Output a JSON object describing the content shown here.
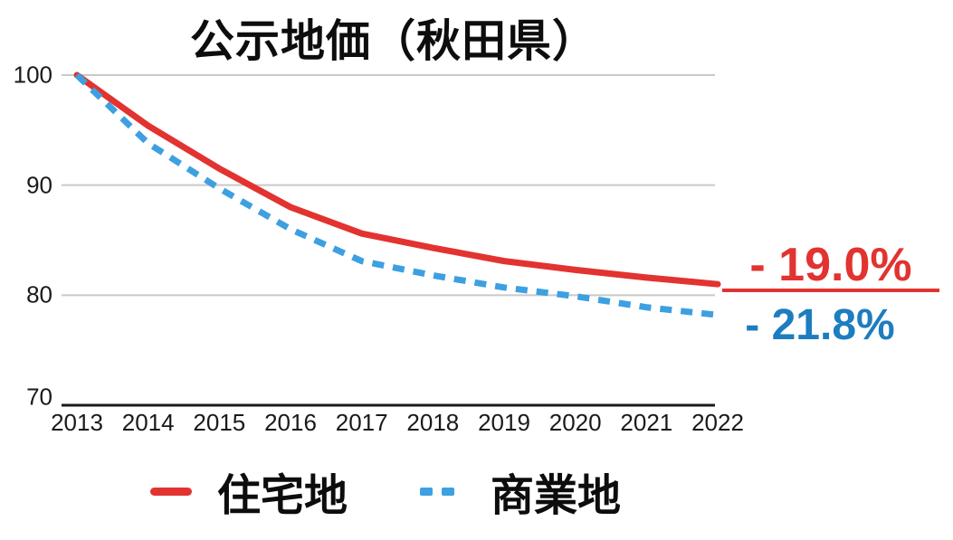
{
  "title": "公示地価（秋田県）",
  "colors": {
    "residential_line": "#e23330",
    "commercial_line": "#3da0e0",
    "commercial_text": "#1d7dbf",
    "gridline": "#c9c9c9",
    "axis": "#1a1a1a",
    "text": "#1a1a1a",
    "background": "#ffffff"
  },
  "annotations": {
    "residential_change": "- 19.0%",
    "commercial_change": "- 21.8%"
  },
  "legend": {
    "residential": "住宅地",
    "commercial": "商業地"
  },
  "chart_data": {
    "type": "line",
    "title": "公示地価（秋田県）",
    "x": [
      2013,
      2014,
      2015,
      2016,
      2017,
      2018,
      2019,
      2020,
      2021,
      2022
    ],
    "series": [
      {
        "name": "住宅地",
        "style": "solid",
        "color": "#e23330",
        "values": [
          100,
          95.4,
          91.5,
          88.0,
          85.6,
          84.3,
          83.1,
          82.3,
          81.6,
          81.0
        ],
        "total_change_label": "- 19.0%"
      },
      {
        "name": "商業地",
        "style": "dashed",
        "color": "#3da0e0",
        "values": [
          100,
          93.8,
          89.7,
          86.0,
          83.1,
          81.8,
          80.7,
          79.9,
          78.9,
          78.2
        ],
        "total_change_label": "- 21.8%"
      }
    ],
    "ylim": [
      70,
      100
    ],
    "yticks": [
      100,
      90,
      80,
      70
    ],
    "xlabel": "",
    "ylabel": "",
    "grid": true,
    "legend_position": "bottom"
  }
}
